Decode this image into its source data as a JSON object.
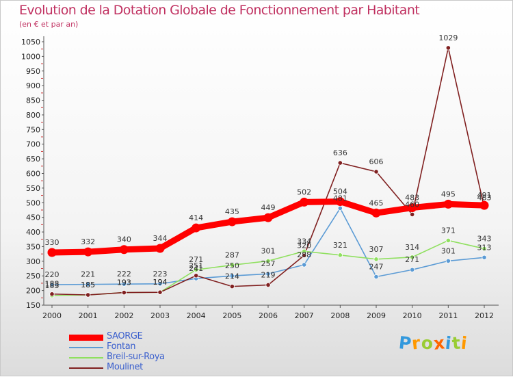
{
  "chart_data": {
    "type": "line",
    "title": "Evolution de la Dotation Globale de Fonctionnement par Habitant",
    "subtitle": "(en € et par an)",
    "xlabel": "",
    "ylabel": "",
    "categories": [
      "2000",
      "2001",
      "2002",
      "2003",
      "2004",
      "2005",
      "2006",
      "2007",
      "2008",
      "2009",
      "2010",
      "2011",
      "2012"
    ],
    "ylim": [
      150,
      1050
    ],
    "yticks": [
      150,
      200,
      250,
      300,
      350,
      400,
      450,
      500,
      550,
      600,
      650,
      700,
      750,
      800,
      850,
      900,
      950,
      1000,
      1050
    ],
    "grid": false,
    "legend_position": "bottom-left",
    "series": [
      {
        "name": "SAORGE",
        "color": "#ff0000",
        "values": [
          330,
          332,
          340,
          344,
          414,
          435,
          449,
          502,
          504,
          465,
          483,
          495,
          491
        ],
        "labels": [
          "330",
          "332",
          "340",
          "344",
          "414",
          "435",
          "449",
          "502",
          "504",
          "465",
          "483",
          "495",
          "491"
        ]
      },
      {
        "name": "Fontan",
        "color": "#5b9bd5",
        "values": [
          220,
          221,
          222,
          223,
          241,
          250,
          257,
          288,
          481,
          247,
          271,
          301,
          313
        ],
        "labels": [
          "220",
          "221",
          "222",
          "223",
          "241",
          "250",
          "257",
          "288",
          "481",
          "247",
          "271",
          "301",
          "313"
        ]
      },
      {
        "name": "Breil-sur-Roya",
        "color": "#90e060",
        "values": [
          183,
          185,
          193,
          194,
          271,
          287,
          301,
          334,
          321,
          307,
          314,
          371,
          343
        ],
        "labels": [
          "183",
          "185",
          "193",
          "194",
          "271",
          "287",
          "301",
          "334",
          "321",
          "307",
          "314",
          "371",
          "343"
        ]
      },
      {
        "name": "Moulinet",
        "color": "#802020",
        "values": [
          188,
          185,
          193,
          194,
          251,
          214,
          219,
          320,
          636,
          606,
          460,
          1029,
          483
        ],
        "labels": [
          "188",
          "185",
          "193",
          "194",
          "251",
          "214",
          "219",
          "320",
          "636",
          "606",
          "460",
          "1029",
          "483"
        ]
      }
    ]
  },
  "brand": {
    "letters": [
      "P",
      "r",
      "o",
      "x",
      "i",
      "t",
      "i"
    ],
    "colors": [
      "#3399dd",
      "#ff9900",
      "#99cc33",
      "#ff6600",
      "#3399dd",
      "#99cc33",
      "#ff9900"
    ]
  }
}
